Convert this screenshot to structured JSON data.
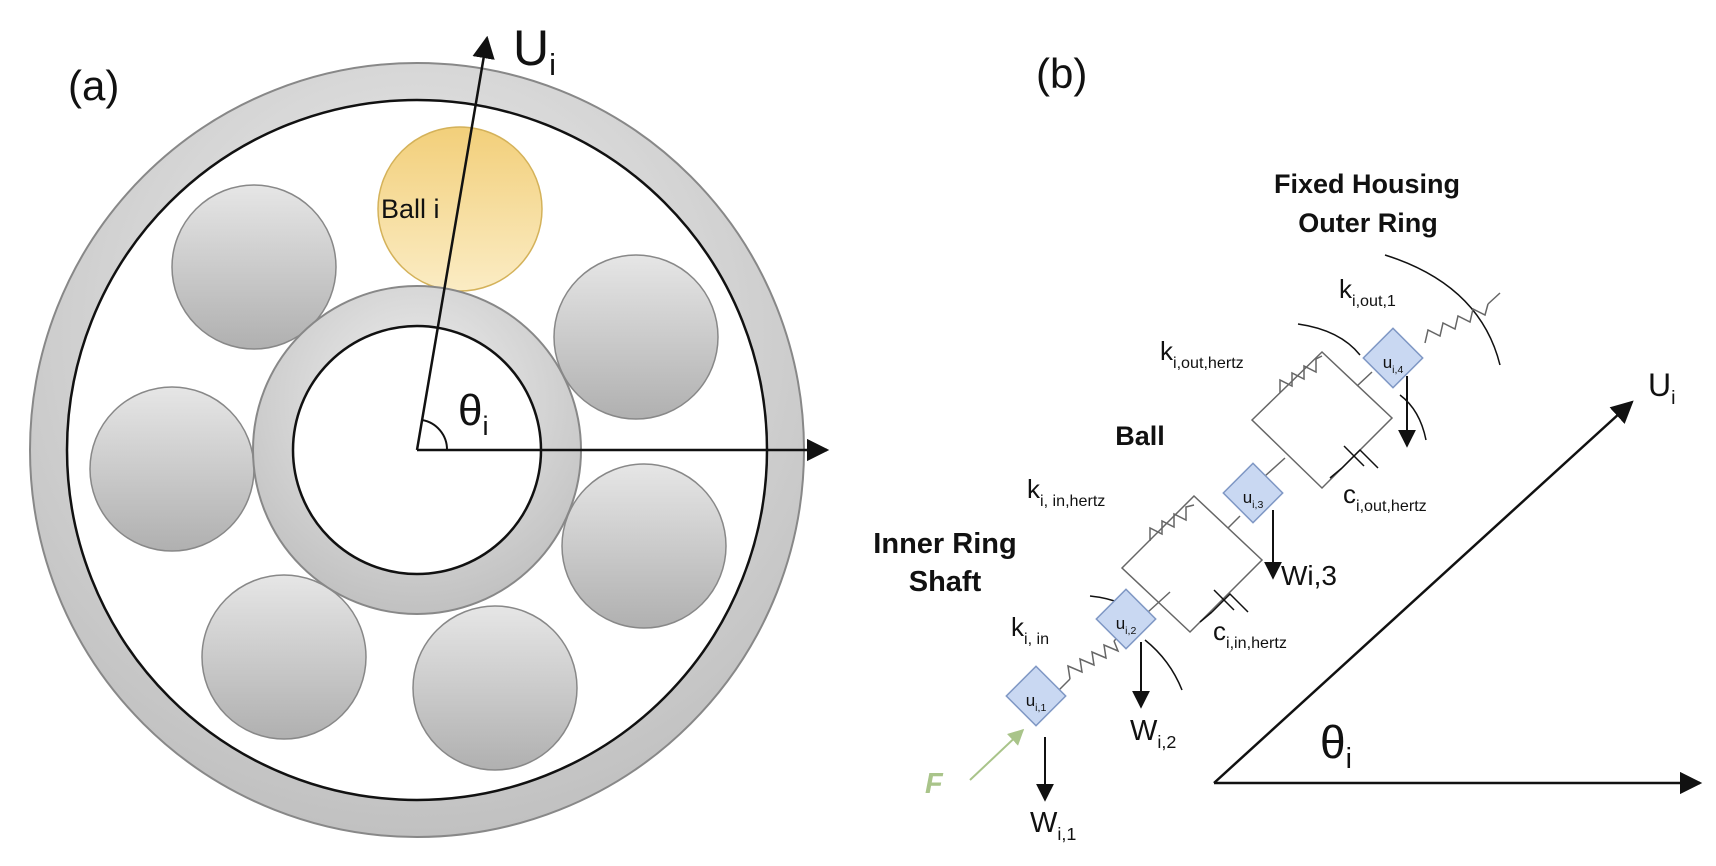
{
  "panel_a": {
    "label": "(a)",
    "axis_label_main": "U",
    "axis_label_sub": "i",
    "angle_main": "θ",
    "angle_sub": "i",
    "ball_label": "Ball i"
  },
  "panel_b": {
    "label": "(b)",
    "outer_title_line1": "Fixed Housing",
    "outer_title_line2": "Outer Ring",
    "ball_title": "Ball",
    "inner_title_line1": "Inner Ring",
    "inner_title_line2": "Shaft",
    "force_label": "F",
    "k_out1": {
      "main": "k",
      "sub": "i,out,1"
    },
    "k_out_hertz": {
      "main": "k",
      "sub": "i,out,hertz"
    },
    "k_in_hertz": {
      "main": "k",
      "sub": "i, in,hertz"
    },
    "k_in": {
      "main": "k",
      "sub": "i, in"
    },
    "c_out_hertz": {
      "main": "c",
      "sub": "i,out,hertz"
    },
    "c_in_hertz": {
      "main": "c",
      "sub": "i,in,hertz"
    },
    "u1": {
      "main": "u",
      "sub": "i,1"
    },
    "u2": {
      "main": "u",
      "sub": "i,2"
    },
    "u3": {
      "main": "u",
      "sub": "i,3"
    },
    "u4": {
      "main": "u",
      "sub": "i,4"
    },
    "w1": {
      "main": "W",
      "sub": "i,1"
    },
    "w2": {
      "main": "W",
      "sub": "i,2"
    },
    "w3": {
      "text": "Wi,3"
    },
    "axis_u": {
      "main": "U",
      "sub": "i"
    },
    "axis_theta": {
      "main": "θ",
      "sub": "i"
    }
  },
  "colors": {
    "ring_fill": "#d9d9d9",
    "ball_highlight": "#f5d98a",
    "node_fill": "#c9d8f2",
    "force_color": "#a9c48a"
  }
}
